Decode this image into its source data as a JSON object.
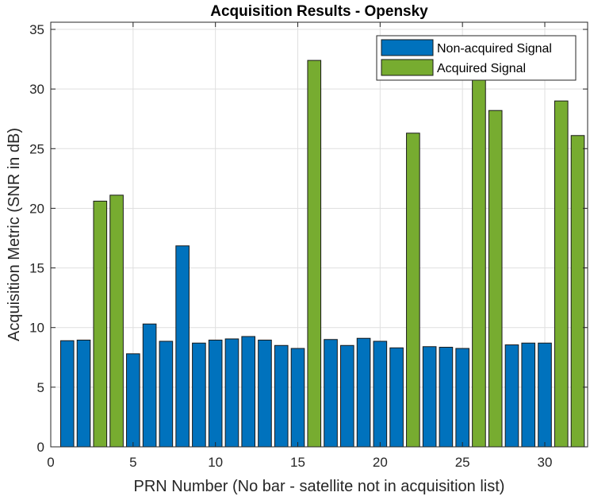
{
  "chart_data": {
    "type": "bar",
    "title": "Acquisition Results - Opensky",
    "xlabel": "PRN Number (No bar - satellite not in acquisition list)",
    "ylabel": "Acquisition Metric (SNR in dB)",
    "xlim": [
      0,
      32.6
    ],
    "ylim": [
      0,
      35.6
    ],
    "xticks": [
      0,
      5,
      10,
      15,
      20,
      25,
      30
    ],
    "yticks": [
      0,
      5,
      10,
      15,
      20,
      25,
      30,
      35
    ],
    "grid": true,
    "legend_position": "top-right",
    "colors": {
      "non_acquired": "#0072BD",
      "acquired": "#77AC30",
      "bar_edge": "#1a1a1a",
      "axis": "#262626",
      "grid": "#dfdfdf"
    },
    "series": [
      {
        "name": "Non-acquired Signal",
        "color": "#0072BD",
        "x": [
          1,
          2,
          5,
          6,
          7,
          8,
          9,
          10,
          11,
          12,
          13,
          14,
          15,
          17,
          18,
          19,
          20,
          21,
          23,
          24,
          25,
          28,
          29,
          30
        ],
        "values": [
          8.9,
          8.95,
          7.8,
          10.3,
          8.85,
          16.85,
          8.7,
          8.95,
          9.05,
          9.25,
          8.95,
          8.5,
          8.25,
          9.0,
          8.5,
          9.1,
          8.85,
          8.3,
          8.4,
          8.35,
          8.25,
          8.55,
          8.7,
          8.7
        ]
      },
      {
        "name": "Acquired Signal",
        "color": "#77AC30",
        "x": [
          3,
          4,
          16,
          22,
          26,
          27,
          31,
          32
        ],
        "values": [
          20.6,
          21.1,
          32.4,
          26.3,
          31.0,
          28.2,
          29.0,
          26.1
        ]
      }
    ]
  }
}
